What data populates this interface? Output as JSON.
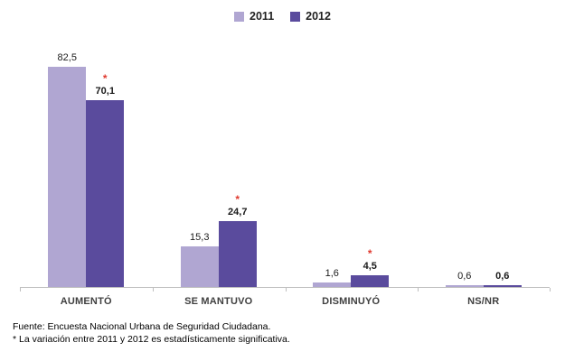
{
  "legend": {
    "items": [
      {
        "label": "2011",
        "color": "#b0a6d2"
      },
      {
        "label": "2012",
        "color": "#5a4b9d"
      }
    ]
  },
  "chart_data": {
    "type": "bar",
    "categories": [
      "AUMENTÓ",
      "SE MANTUVO",
      "DISMINUYÓ",
      "NS/NR"
    ],
    "series": [
      {
        "name": "2011",
        "values": [
          82.5,
          15.3,
          1.6,
          0.6
        ],
        "labels": [
          "82,5",
          "15,3",
          "1,6",
          "0,6"
        ],
        "color": "#b0a6d2",
        "bold_labels": false
      },
      {
        "name": "2012",
        "values": [
          70.1,
          24.7,
          4.5,
          0.6
        ],
        "labels": [
          "70,1",
          "24,7",
          "4,5",
          "0,6"
        ],
        "color": "#5a4b9d",
        "bold_labels": true
      }
    ],
    "significant_categories": [
      true,
      true,
      true,
      false
    ],
    "significance_marker": "*",
    "title": "",
    "xlabel": "",
    "ylabel": "",
    "ylim": [
      0,
      90
    ],
    "grid": false,
    "value_axis_visible": false,
    "legend_position": "top"
  },
  "colors": {
    "series_2011": "#b0a6d2",
    "series_2012": "#5a4b9d",
    "asterisk": "#e03a2f",
    "axis": "#bfbfbf",
    "category_label": "#404040",
    "value_label": "#1a1a1a"
  },
  "footer": {
    "source": "Fuente: Encuesta Nacional Urbana de Seguridad Ciudadana.",
    "note": "* La variación entre 2011 y 2012 es estadísticamente significativa."
  }
}
